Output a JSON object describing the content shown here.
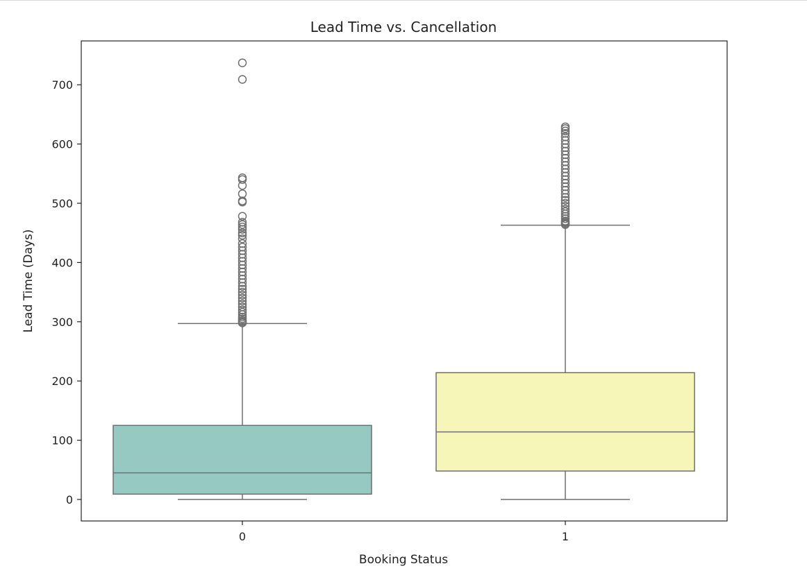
{
  "chart_data": {
    "type": "box",
    "title": "Lead Time vs. Cancellation",
    "xlabel": "Booking Status",
    "ylabel": "Lead Time (Days)",
    "ylim": [
      -36,
      775
    ],
    "yticks": [
      0,
      100,
      200,
      300,
      400,
      500,
      600,
      700
    ],
    "categories": [
      "0",
      "1"
    ],
    "grid": false,
    "legend": "none",
    "boxes": [
      {
        "category": "0",
        "color": "#96c9c1",
        "whisker_low": 0,
        "q1": 9,
        "median": 45,
        "q3": 125,
        "whisker_high": 297,
        "outliers": [
          298,
          300,
          302,
          305,
          308,
          312,
          316,
          320,
          325,
          330,
          335,
          340,
          345,
          350,
          355,
          360,
          366,
          372,
          378,
          384,
          390,
          396,
          402,
          408,
          414,
          420,
          426,
          432,
          440,
          446,
          450,
          456,
          460,
          464,
          468,
          478,
          502,
          504,
          516,
          530,
          540,
          543,
          709,
          737
        ]
      },
      {
        "category": "1",
        "color": "#f7f6b9",
        "whisker_low": 0,
        "q1": 48,
        "median": 114,
        "q3": 214,
        "whisker_high": 463,
        "outliers": [
          464,
          466,
          468,
          470,
          474,
          478,
          482,
          486,
          490,
          495,
          500,
          505,
          510,
          516,
          522,
          528,
          534,
          540,
          546,
          552,
          558,
          564,
          570,
          576,
          582,
          588,
          594,
          600,
          606,
          612,
          618,
          622,
          626,
          629
        ]
      }
    ]
  }
}
